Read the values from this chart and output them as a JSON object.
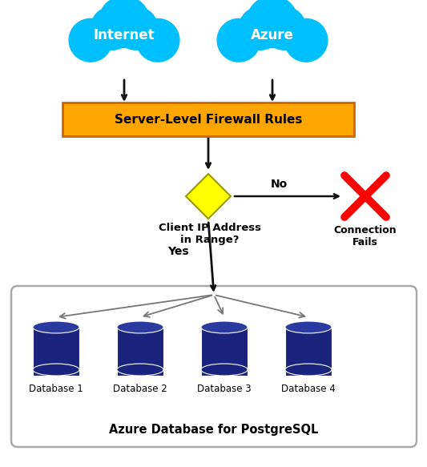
{
  "bg_color": "#ffffff",
  "cloud_color": "#00bfff",
  "firewall_box_color": "#FFA500",
  "firewall_border_color": "#cc6600",
  "firewall_text": "Server-Level Firewall Rules",
  "diamond_color": "#FFFF00",
  "diamond_border_color": "#999900",
  "decision_text": "Client IP Address\nin Range?",
  "no_label": "No",
  "yes_label": "Yes",
  "fail_text": "Connection\nFails",
  "db_color_body": "#1a237e",
  "db_color_top": "#2a3a9e",
  "db_labels": [
    "Database 1",
    "Database 2",
    "Database 3",
    "Database 4"
  ],
  "box_label": "Azure Database for PostgreSQL",
  "internet_label": "Internet",
  "azure_label": "Azure",
  "arrow_color": "#111111",
  "gray_arrow": "#777777",
  "box_border": "#aaaaaa"
}
